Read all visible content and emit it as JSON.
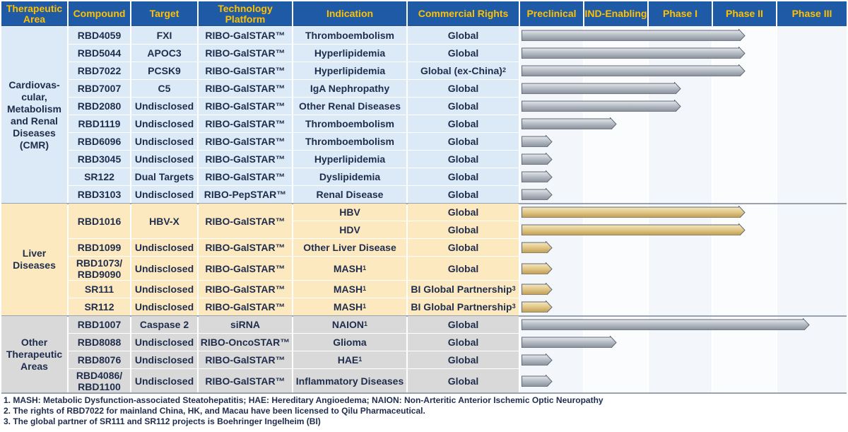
{
  "headers": {
    "area": "Therapeutic Area",
    "compound": "Compound",
    "target": "Target",
    "platform": "Technology Platform",
    "indication": "Indication",
    "rights": "Commercial Rights",
    "phases": [
      "Preclinical",
      "IND-Enabling",
      "Phase I",
      "Phase II",
      "Phase III"
    ]
  },
  "colors": {
    "header_bg": "#1f5aa6",
    "header_text": "#ffc000",
    "cmr_bg": "#dce9f7",
    "liver_bg": "#fde9c0",
    "other_bg": "#d9d9d9",
    "bar_gray": "#b8bec6",
    "bar_gold": "#e3c98a"
  },
  "areas": [
    {
      "name": "Cardiovas-\ncular,\nMetabolism\nand Renal\nDiseases\n(CMR)",
      "bold": true
    },
    {
      "name": "Liver\nDiseases",
      "bold": true
    },
    {
      "name": "Other\nTherapeutic\nAreas",
      "bold": true
    }
  ],
  "rows": [
    {
      "area": 0,
      "compound": "RBD4059",
      "target": "FXI",
      "platform": "RIBO-GalSTAR™",
      "indication": "Thromboembolism",
      "rights": "Global",
      "progress": 3.5
    },
    {
      "area": 0,
      "compound": "RBD5044",
      "target": "APOC3",
      "platform": "RIBO-GalSTAR™",
      "indication": "Hyperlipidemia",
      "rights": "Global",
      "progress": 3.5
    },
    {
      "area": 0,
      "compound": "RBD7022",
      "target": "PCSK9",
      "platform": "RIBO-GalSTAR™",
      "indication": "Hyperlipidemia",
      "rights": "Global (ex-China)",
      "rights_sup": "2",
      "progress": 3.5
    },
    {
      "area": 0,
      "compound": "RBD7007",
      "target": "C5",
      "platform": "RIBO-GalSTAR™",
      "indication": "IgA Nephropathy",
      "rights": "Global",
      "progress": 2.5
    },
    {
      "area": 0,
      "compound": "RBD2080",
      "target": "Undisclosed",
      "platform": "RIBO-GalSTAR™",
      "indication": "Other Renal Diseases",
      "rights": "Global",
      "progress": 2.5
    },
    {
      "area": 0,
      "compound": "RBD1119",
      "target": "Undisclosed",
      "platform": "RIBO-GalSTAR™",
      "indication": "Thromboembolism",
      "rights": "Global",
      "progress": 1.5
    },
    {
      "area": 0,
      "compound": "RBD6096",
      "target": "Undisclosed",
      "platform": "RIBO-GalSTAR™",
      "indication": "Thromboembolism",
      "rights": "Global",
      "progress": 0.5
    },
    {
      "area": 0,
      "compound": "RBD3045",
      "target": "Undisclosed",
      "platform": "RIBO-GalSTAR™",
      "indication": "Hyperlipidemia",
      "rights": "Global",
      "progress": 0.5
    },
    {
      "area": 0,
      "compound": "SR122",
      "target": "Dual Targets",
      "platform": "RIBO-GalSTAR™",
      "indication": "Dyslipidemia",
      "rights": "Global",
      "progress": 0.5
    },
    {
      "area": 0,
      "compound": "RBD3103",
      "target": "Undisclosed",
      "platform": "RIBO-PepSTAR™",
      "indication": "Renal Disease",
      "rights": "Global",
      "progress": 0.5
    },
    {
      "area": 1,
      "compound": "RBD1016",
      "target": "HBV-X",
      "platform": "RIBO-GalSTAR™",
      "indication": "HBV",
      "rights": "Global",
      "progress": 3.5,
      "merge_start": 2
    },
    {
      "area": 1,
      "compound": "",
      "target": "",
      "platform": "",
      "indication": "HDV",
      "rights": "Global",
      "progress": 3.5,
      "merged": true
    },
    {
      "area": 1,
      "compound": "RBD1099",
      "target": "Undisclosed",
      "platform": "RIBO-GalSTAR™",
      "indication": "Other Liver Disease",
      "rights": "Global",
      "progress": 0.5
    },
    {
      "area": 1,
      "compound": "RBD1073/\nRBD9090",
      "target": "Undisclosed",
      "platform": "RIBO-GalSTAR™",
      "indication": "MASH",
      "indication_sup": "1",
      "rights": "Global",
      "progress": 0.5,
      "tall": true
    },
    {
      "area": 1,
      "compound": "SR111",
      "target": "Undisclosed",
      "platform": "RIBO-GalSTAR™",
      "indication": "MASH",
      "indication_sup": "1",
      "rights": "BI Global Partnership",
      "rights_sup": "3",
      "progress": 0.5
    },
    {
      "area": 1,
      "compound": "SR112",
      "target": "Undisclosed",
      "platform": "RIBO-GalSTAR™",
      "indication": "MASH",
      "indication_sup": "1",
      "rights": "BI Global Partnership",
      "rights_sup": "3",
      "progress": 0.5
    },
    {
      "area": 2,
      "compound": "RBD1007",
      "target": "Caspase 2",
      "platform": "siRNA",
      "indication": "NAION",
      "indication_sup": "1",
      "rights": "Global",
      "progress": 4.5
    },
    {
      "area": 2,
      "compound": "RBD8088",
      "target": "Undisclosed",
      "platform": "RIBO-OncoSTAR™",
      "indication": "Glioma",
      "rights": "Global",
      "progress": 1.5
    },
    {
      "area": 2,
      "compound": "RBD8076",
      "target": "Undisclosed",
      "platform": "RIBO-GalSTAR™",
      "indication": "HAE",
      "indication_sup": "1",
      "rights": "Global",
      "progress": 0.5
    },
    {
      "area": 2,
      "compound": "RBD4086/\nRBD1100",
      "target": "Undisclosed",
      "platform": "RIBO-GalSTAR™",
      "indication": "Inflammatory Diseases",
      "rights": "Global",
      "progress": 0.5,
      "tall": true
    }
  ],
  "footnotes": [
    "1. MASH: Metabolic Dysfunction-associated Steatohepatitis; HAE: Hereditary Angioedema; NAION: Non-Arteritic Anterior Ischemic Optic Neuropathy",
    "2. The rights of RBD7022 for mainland China, HK, and Macau have been licensed to Qilu Pharmaceutical.",
    "3. The global partner of SR111 and SR112 projects is Boehringer Ingelheim (BI)"
  ]
}
